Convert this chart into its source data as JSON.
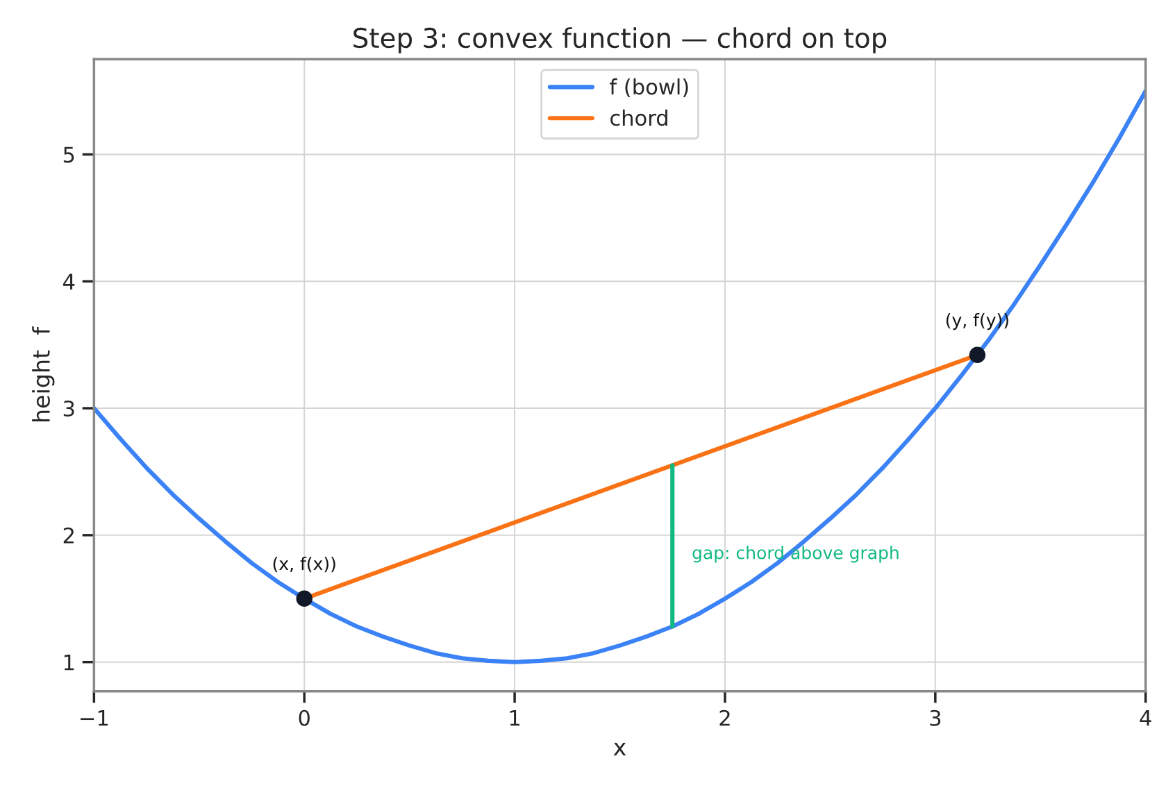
{
  "chart_data": {
    "type": "line",
    "title": "Step 3: convex function — chord on top",
    "xlabel": "x",
    "ylabel": "height  f",
    "xlim": [
      -1,
      4
    ],
    "xticks": [
      {
        "value": -1,
        "label": "−1"
      },
      0,
      1,
      2,
      3,
      4
    ],
    "ylim": [
      0.77,
      5.75
    ],
    "yticks": [
      1,
      2,
      3,
      4,
      5
    ],
    "grid": true,
    "legend": "top",
    "series": [
      {
        "name": "f (bowl)",
        "color": "#3b82f6",
        "x": [
          -1,
          -0.875,
          -0.75,
          -0.625,
          -0.5,
          -0.375,
          -0.25,
          -0.125,
          0,
          0.125,
          0.25,
          0.375,
          0.5,
          0.625,
          0.75,
          0.875,
          1,
          1.125,
          1.25,
          1.375,
          1.5,
          1.625,
          1.75,
          1.875,
          2,
          2.125,
          2.25,
          2.375,
          2.5,
          2.625,
          2.75,
          2.875,
          3,
          3.125,
          3.25,
          3.375,
          3.5,
          3.625,
          3.75,
          3.875,
          4
        ],
        "values": [
          3,
          2.76,
          2.53,
          2.32,
          2.13,
          1.95,
          1.78,
          1.63,
          1.5,
          1.38,
          1.28,
          1.2,
          1.13,
          1.07,
          1.03,
          1.01,
          1,
          1.01,
          1.03,
          1.07,
          1.13,
          1.2,
          1.28,
          1.38,
          1.5,
          1.63,
          1.78,
          1.95,
          2.13,
          2.32,
          2.53,
          2.76,
          3,
          3.26,
          3.53,
          3.82,
          4.13,
          4.45,
          4.78,
          5.13,
          5.5
        ]
      },
      {
        "name": "chord",
        "color": "#f97316",
        "x": [
          0,
          3.2
        ],
        "values": [
          1.5,
          3.42
        ]
      },
      {
        "color": "#10b981",
        "x": [
          1.75,
          1.75
        ],
        "values": [
          1.28,
          2.55
        ]
      },
      {
        "type": "scatter",
        "color": "#111827",
        "marker": "circle",
        "x": [
          0,
          3.2
        ],
        "values": [
          1.5,
          3.42
        ]
      }
    ],
    "annotations": [
      {
        "text": "(x, f(x))",
        "x": 0,
        "y": 1.5
      },
      {
        "text": "(y, f(y))",
        "x": 3.2,
        "y": 3.42
      },
      {
        "text": "gap: chord above graph",
        "x": 1.75,
        "y": 1.85
      }
    ]
  }
}
